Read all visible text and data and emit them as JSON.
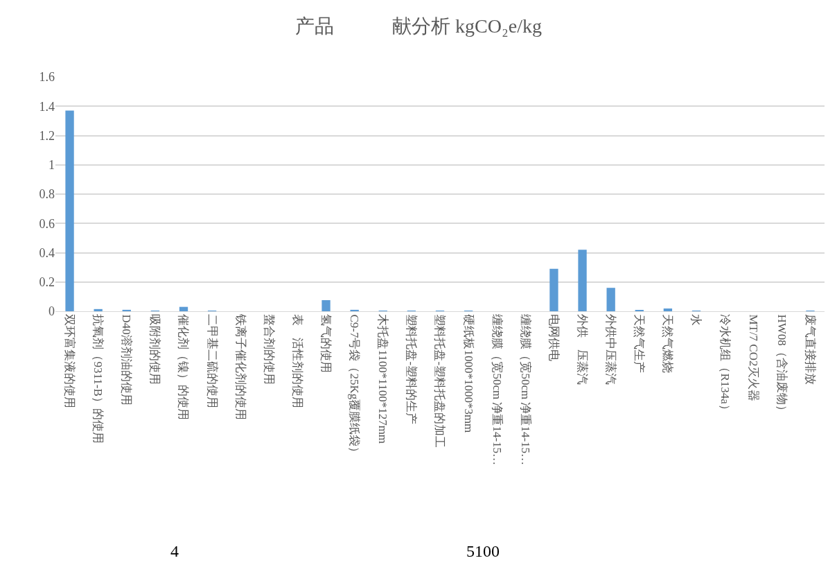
{
  "chart_data": {
    "type": "bar",
    "title": "产品　　　献分析 kgCO₂e/kg",
    "categories": [
      "双环富集液的使用",
      "抗氧剂（9311-B）的使用",
      "D40溶剂油的使用",
      "吸附剂的使用",
      "催化剂（镍）的使用",
      "二甲基二硫的使用",
      "铁离子催化剂的使用",
      "螯合剂的使用",
      "表　活性剂的使用",
      "氢气的使用",
      "C9-7号袋（25Kg覆膜纸袋）",
      "木托盘1100*1100*127mm",
      "塑料托盘-塑料的生产",
      "塑料托盘-塑料托盘的加工",
      "硬纸板1000*1000*3mm",
      "缠绕膜（宽50cm 净重14-15…",
      "缠绕膜（宽50cm 净重14-15…",
      "电网供电",
      "外供　压蒸汽",
      "外供中压蒸汽",
      "天然气生产",
      "天然气燃烧",
      "水",
      "冷水机组（R134a）",
      "MT/7 CO2灭火器",
      "HW08（含油废物）",
      "废气直接排放"
    ],
    "values": [
      1.37,
      0.015,
      0.01,
      0.002,
      0.03,
      0.001,
      0,
      0,
      0,
      0.076,
      0.01,
      0.002,
      0.002,
      0.002,
      0.002,
      0,
      0,
      0.29,
      0.42,
      0.16,
      0.005,
      0.019,
      0.002,
      0,
      0,
      0,
      0.002
    ],
    "color": "#5b9bd5",
    "ylim": [
      0,
      1.6
    ],
    "yticks": [
      {
        "value": 0,
        "label": "0"
      },
      {
        "value": 0.2,
        "label": "0.2"
      },
      {
        "value": 0.4,
        "label": "0.4"
      },
      {
        "value": 0.6,
        "label": "0.6"
      },
      {
        "value": 0.8,
        "label": "0.8"
      },
      {
        "value": 1,
        "label": "1"
      },
      {
        "value": 1.2,
        "label": "1.2"
      },
      {
        "value": 1.4,
        "label": "1.4"
      },
      {
        "value": 1.6,
        "label": "1.6"
      }
    ],
    "grid": "y",
    "annotations": [
      "4",
      "5100"
    ]
  }
}
